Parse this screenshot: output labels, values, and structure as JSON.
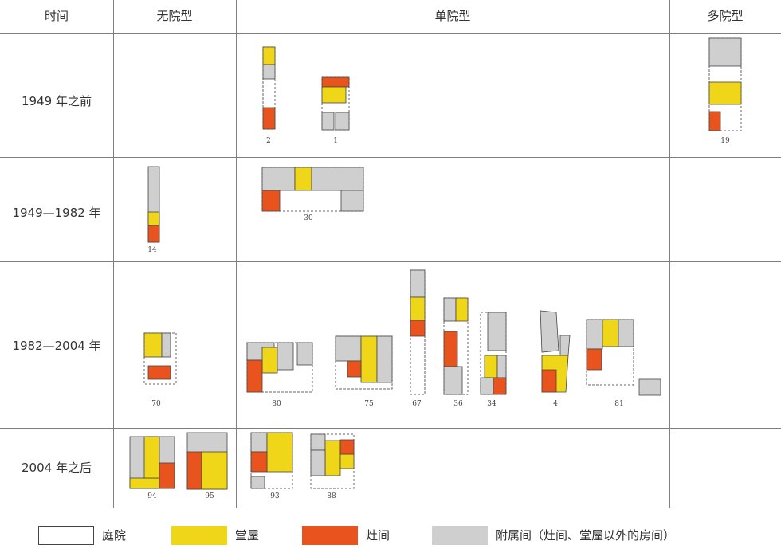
{
  "header": {
    "time": "时间",
    "no_courtyard": "无院型",
    "single_courtyard": "单院型",
    "multi_courtyard": "多院型"
  },
  "rows": [
    {
      "period": "1949 年之前"
    },
    {
      "period": "1949—1982 年"
    },
    {
      "period": "1982—2004 年"
    },
    {
      "period": "2004 年之后"
    }
  ],
  "plans": {
    "row1_single": [
      "2",
      "1"
    ],
    "row1_multi": [
      "19"
    ],
    "row2_none": [
      "14"
    ],
    "row2_single": [
      "30"
    ],
    "row3_none": [
      "70"
    ],
    "row3_single": [
      "80",
      "75",
      "67",
      "36",
      "34",
      "4",
      "81"
    ],
    "row4_none": [
      "94",
      "95"
    ],
    "row4_single": [
      "93",
      "88"
    ]
  },
  "legend": [
    {
      "label": "庭院",
      "color": "#ffffff"
    },
    {
      "label": "堂屋",
      "color": "#f0d619"
    },
    {
      "label": "灶间",
      "color": "#e9541e"
    },
    {
      "label": "附属间（灶间、堂屋以外的房间）",
      "color": "#cfcfcf"
    }
  ],
  "colors": {
    "courtyard": "#ffffff",
    "hall": "#f0d619",
    "kitchen": "#e9541e",
    "auxiliary": "#cfcfcf"
  }
}
